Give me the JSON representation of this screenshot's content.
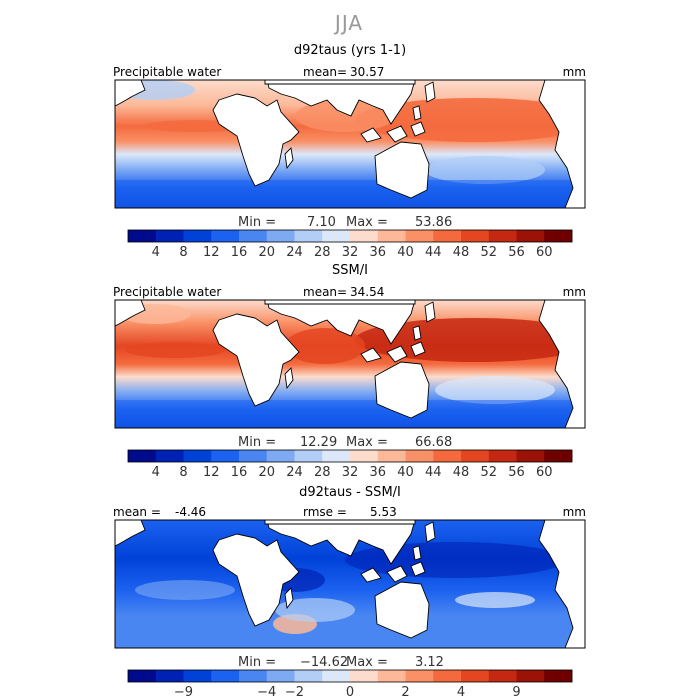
{
  "figure": {
    "season": "JJA"
  },
  "colors": {
    "panel_a_bar": [
      "#000a8c",
      "#0022b4",
      "#0042d8",
      "#1c62f0",
      "#4a86f2",
      "#7eaaf4",
      "#b2cef6",
      "#dce8fa",
      "#fcdccc",
      "#fcb898",
      "#fa9066",
      "#f46a3e",
      "#e44622",
      "#c42812",
      "#9c1206",
      "#700000"
    ],
    "panel_c_bar": [
      "#000a8c",
      "#0022b4",
      "#0042d8",
      "#1c62f0",
      "#4a86f2",
      "#7eaaf4",
      "#b2cef6",
      "#dce8fa",
      "#fcdccc",
      "#fcb898",
      "#fa9066",
      "#f46a3e",
      "#e44622",
      "#c42812",
      "#9c1206",
      "#700000"
    ]
  },
  "chart_data": [
    {
      "type": "heatmap",
      "title": "d92taus (yrs 1-1)",
      "variable": "Precipitable water",
      "mean_label": "mean=",
      "mean": "30.57",
      "units": "mm",
      "min_label": "Min =",
      "min": "7.10",
      "max_label": "Max =",
      "max": "53.86",
      "colorbar_ticks": [
        "4",
        "8",
        "12",
        "16",
        "20",
        "24",
        "28",
        "32",
        "36",
        "40",
        "44",
        "48",
        "52",
        "56",
        "60"
      ]
    },
    {
      "type": "heatmap",
      "title": "SSM/I",
      "variable": "Precipitable water",
      "mean_label": "mean=",
      "mean": "34.54",
      "units": "mm",
      "min_label": "Min =",
      "min": "12.29",
      "max_label": "Max =",
      "max": "66.68",
      "colorbar_ticks": [
        "4",
        "8",
        "12",
        "16",
        "20",
        "24",
        "28",
        "32",
        "36",
        "40",
        "44",
        "48",
        "52",
        "56",
        "60"
      ]
    },
    {
      "type": "heatmap",
      "title": "d92taus - SSM/I",
      "mean_label": "mean =",
      "mean": "-4.46",
      "rmse_label": "rmse =",
      "rmse": "5.53",
      "units": "mm",
      "min_label": "Min =",
      "min": "−14.62",
      "max_label": "Max =",
      "max": "3.12",
      "colorbar_ticks": [
        "−9",
        "−4",
        "−2",
        "0",
        "2",
        "4",
        "9"
      ]
    }
  ]
}
